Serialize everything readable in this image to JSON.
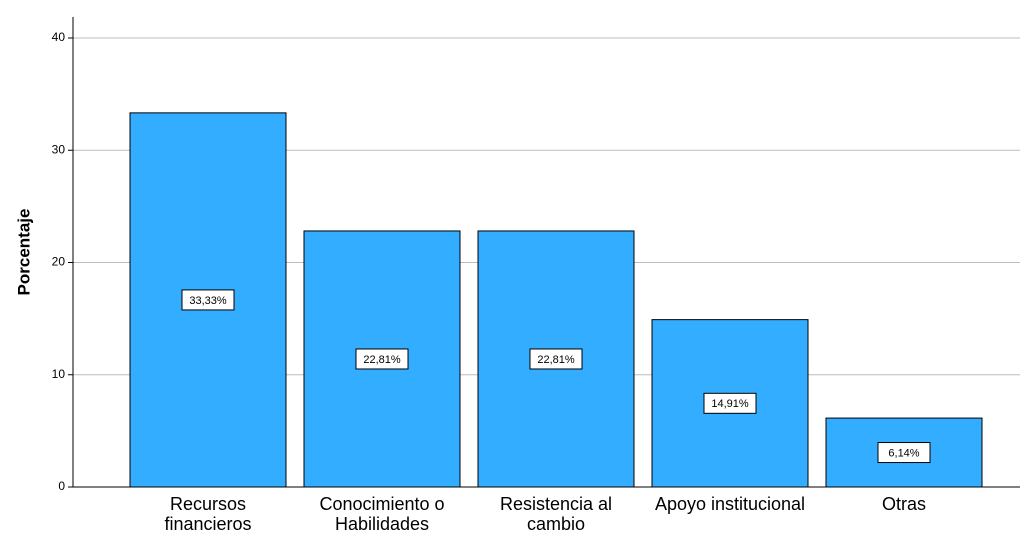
{
  "chart_data": {
    "type": "bar",
    "y_label": "Porcentaje",
    "categories": [
      "Recursos\nfinancieros",
      "Conocimiento o\nHabilidades",
      "Resistencia al\ncambio",
      "Apoyo institucional",
      "Otras"
    ],
    "values": [
      33.33,
      22.81,
      22.81,
      14.91,
      6.14
    ],
    "value_labels": [
      "33,33%",
      "22,81%",
      "22,81%",
      "14,91%",
      "6,14%"
    ],
    "color": "#33adff",
    "ylim": [
      0,
      40
    ],
    "yticks": [
      0,
      10,
      20,
      30,
      40
    ],
    "grid": true
  }
}
